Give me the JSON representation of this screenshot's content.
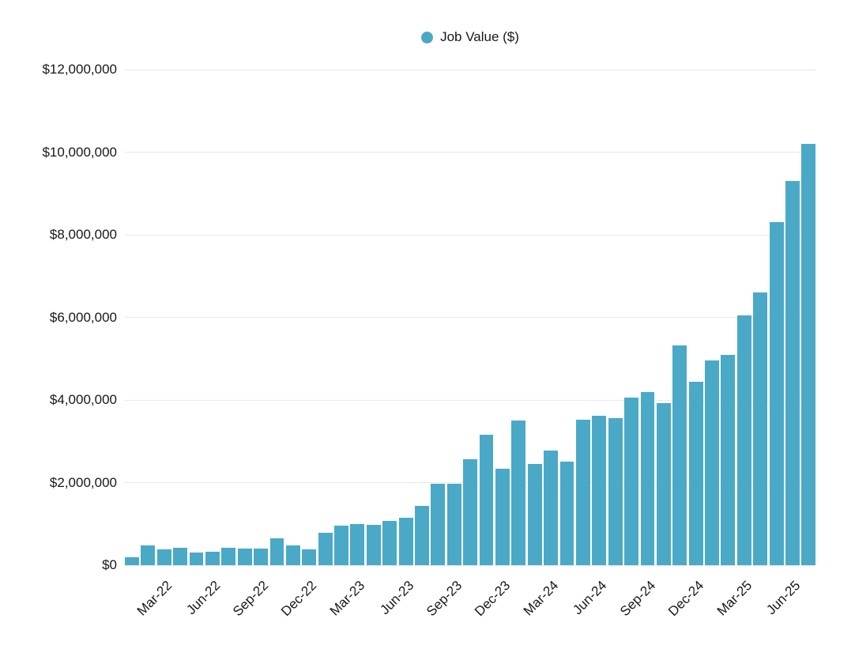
{
  "chart_data": {
    "type": "bar",
    "title": "",
    "legend": {
      "label": "Job Value ($)",
      "position": "top-center"
    },
    "grid": "horizontal",
    "colors": {
      "bar": "#4AA9C7",
      "grid": "#e8e8e8",
      "text": "#15181c",
      "background": "#ffffff"
    },
    "ylim": [
      0,
      12000000
    ],
    "yticks": [
      0,
      2000000,
      4000000,
      6000000,
      8000000,
      10000000,
      12000000
    ],
    "ytick_labels": [
      "$0",
      "$2,000,000",
      "$4,000,000",
      "$6,000,000",
      "$8,000,000",
      "$10,000,000",
      "$12,000,000"
    ],
    "x": [
      "Jan-22",
      "Feb-22",
      "Mar-22",
      "Apr-22",
      "May-22",
      "Jun-22",
      "Jul-22",
      "Aug-22",
      "Sep-22",
      "Oct-22",
      "Nov-22",
      "Dec-22",
      "Jan-23",
      "Feb-23",
      "Mar-23",
      "Apr-23",
      "May-23",
      "Jun-23",
      "Jul-23",
      "Aug-23",
      "Sep-23",
      "Oct-23",
      "Nov-23",
      "Dec-23",
      "Jan-24",
      "Feb-24",
      "Mar-24",
      "Apr-24",
      "May-24",
      "Jun-24",
      "Jul-24",
      "Aug-24",
      "Sep-24",
      "Oct-24",
      "Nov-24",
      "Dec-24",
      "Jan-25",
      "Feb-25",
      "Mar-25",
      "Apr-25",
      "May-25",
      "Jun-25",
      "Jul-25"
    ],
    "values": [
      200000,
      480000,
      380000,
      420000,
      300000,
      330000,
      430000,
      410000,
      400000,
      660000,
      480000,
      390000,
      780000,
      950000,
      1000000,
      970000,
      1080000,
      1150000,
      1430000,
      1980000,
      1970000,
      2560000,
      3160000,
      2340000,
      3500000,
      2450000,
      2780000,
      2500000,
      3530000,
      3620000,
      3560000,
      4050000,
      4200000,
      3930000,
      5330000,
      4450000,
      4950000,
      5100000,
      6050000,
      6600000,
      8300000,
      9300000,
      10200000
    ],
    "xticks_shown": [
      "Mar-22",
      "Jun-22",
      "Sep-22",
      "Dec-22",
      "Mar-23",
      "Jun-23",
      "Sep-23",
      "Dec-23",
      "Mar-24",
      "Jun-24",
      "Sep-24",
      "Dec-24",
      "Mar-25",
      "Jun-25"
    ]
  }
}
